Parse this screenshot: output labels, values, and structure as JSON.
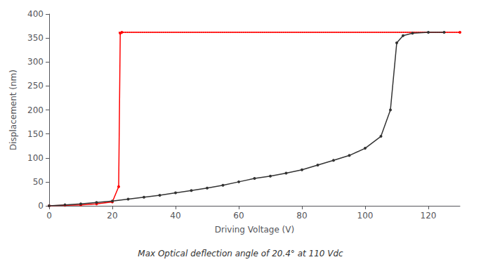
{
  "chart_data": {
    "type": "line",
    "xlabel": "Driving Voltage (V)",
    "ylabel": "Displacement (nm)",
    "annotations": [
      "Max Optical deflection angle of 20.4° at 110 Vdc"
    ],
    "xlim": [
      0,
      130
    ],
    "ylim": [
      0,
      400
    ],
    "xticks": [
      0,
      20,
      40,
      60,
      80,
      100,
      120
    ],
    "yticks": [
      0,
      50,
      100,
      150,
      200,
      250,
      300,
      350,
      400
    ],
    "grid": false,
    "series": [
      {
        "color": "red",
        "line_style": "dotted",
        "marker": "none",
        "x": [
          22,
          130
        ],
        "values": [
          362,
          362
        ]
      },
      {
        "color": "red",
        "line_style": "solid",
        "marker": "circle",
        "x": [
          0,
          5,
          10,
          15,
          20,
          22,
          22.5,
          23,
          130
        ],
        "values": [
          0,
          1,
          2,
          4,
          8,
          40,
          360,
          362,
          362
        ]
      },
      {
        "color": "#333333",
        "line_style": "solid",
        "marker": "circle",
        "x": [
          0,
          5,
          10,
          15,
          20,
          25,
          30,
          35,
          40,
          45,
          50,
          55,
          60,
          65,
          70,
          75,
          80,
          85,
          90,
          95,
          100,
          105,
          108,
          110,
          112,
          115,
          120,
          125
        ],
        "values": [
          0,
          2,
          4,
          7,
          10,
          14,
          18,
          22,
          27,
          32,
          37,
          43,
          50,
          57,
          62,
          68,
          75,
          85,
          95,
          105,
          120,
          145,
          200,
          340,
          355,
          360,
          362,
          362
        ]
      }
    ]
  }
}
